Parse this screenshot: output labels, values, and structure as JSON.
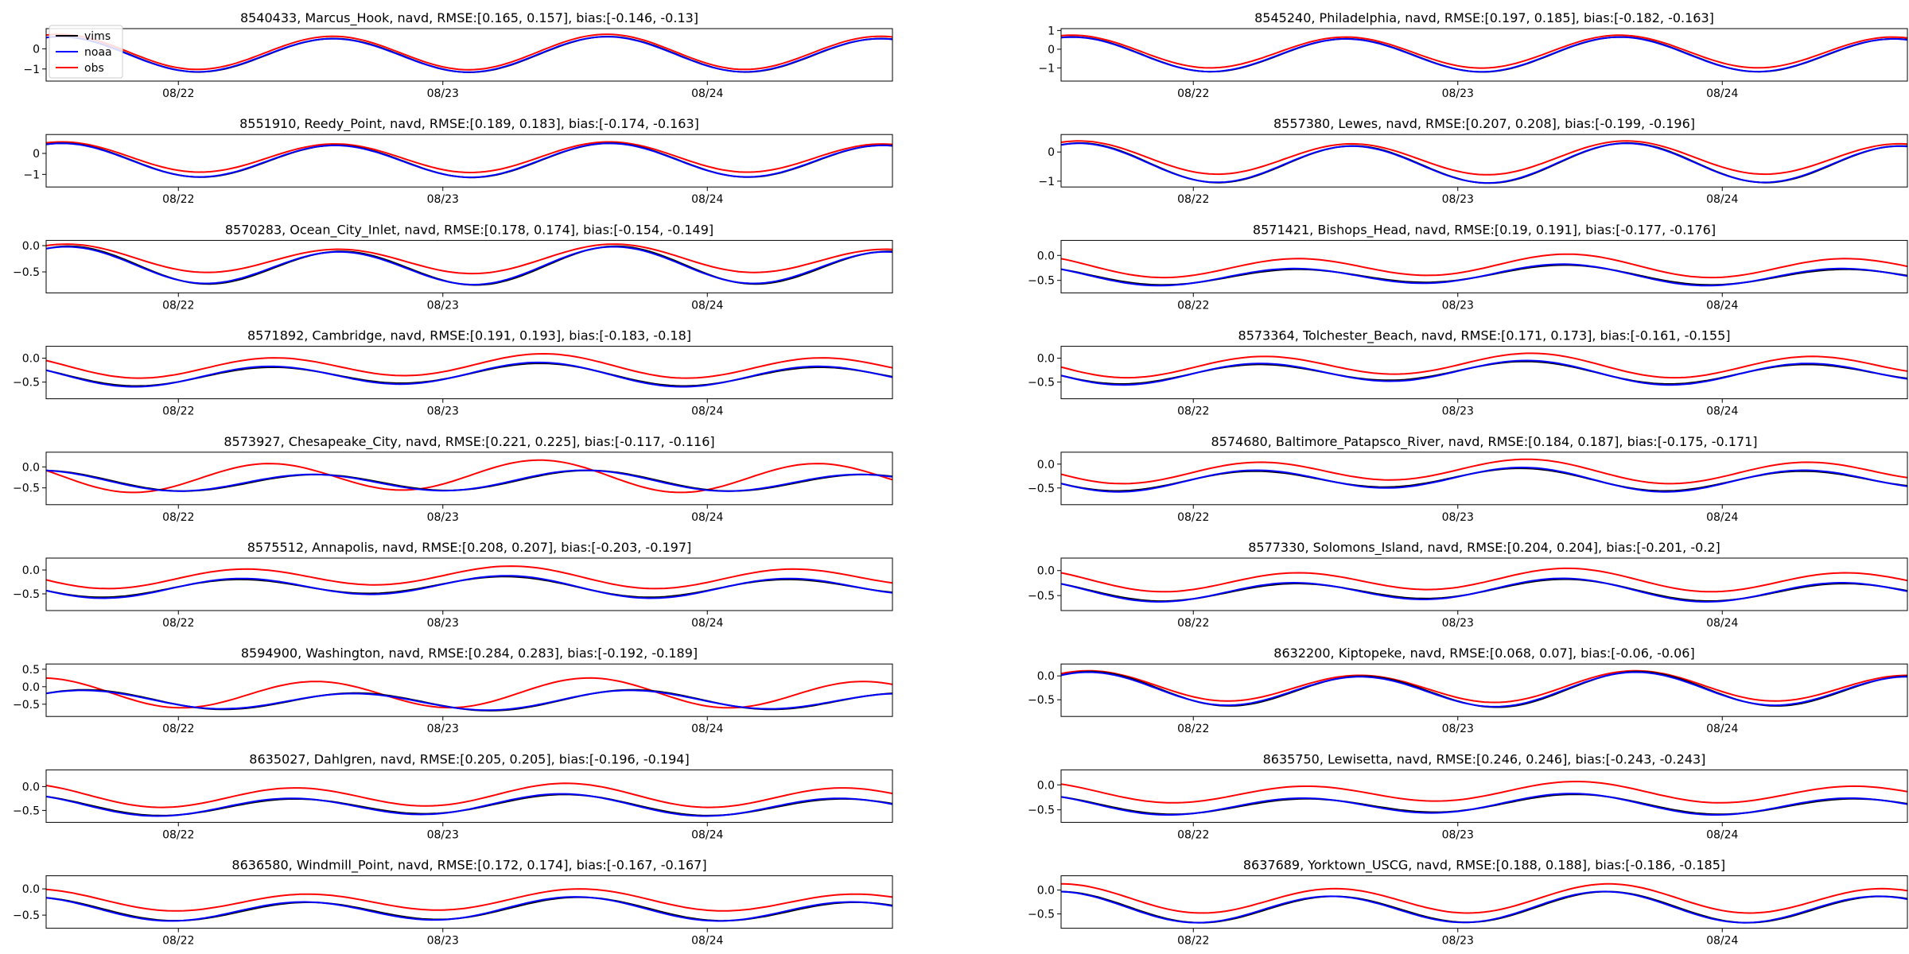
{
  "legend": {
    "location": "upper-left of first panel",
    "entries": [
      {
        "label": "vims",
        "color": "#000000"
      },
      {
        "label": "noaa",
        "color": "#0000ff"
      },
      {
        "label": "obs",
        "color": "#ff0000"
      }
    ]
  },
  "colors": {
    "vims": "#000000",
    "noaa": "#0000ff",
    "obs": "#ff0000",
    "axes": "#000000",
    "text": "#000000"
  },
  "x_ticks": [
    "08/22",
    "08/23",
    "08/24"
  ],
  "chart_data": [
    {
      "type": "line",
      "title": "8540433, Marcus_Hook, navd, RMSE:[0.165, 0.157], bias:[-0.146, -0.13]",
      "ylim": [
        -1.6,
        1.0
      ],
      "yticks": [
        -1,
        0
      ],
      "model": {
        "mean": -0.3,
        "amp": 0.85,
        "phase": -0.3
      },
      "obs": {
        "mean": -0.18,
        "amp": 0.85,
        "phase": -0.3
      }
    },
    {
      "type": "line",
      "title": "8545240, Philadelphia, navd, RMSE:[0.197, 0.185], bias:[-0.182, -0.163]",
      "ylim": [
        -1.7,
        1.1
      ],
      "yticks": [
        -1,
        0,
        1
      ],
      "model": {
        "mean": -0.3,
        "amp": 0.9,
        "phase": -0.25
      },
      "obs": {
        "mean": -0.15,
        "amp": 0.85,
        "phase": -0.25
      }
    },
    {
      "type": "line",
      "title": "8551910, Reedy_Point, navd, RMSE:[0.189, 0.183], bias:[-0.174, -0.163]",
      "ylim": [
        -1.6,
        0.9
      ],
      "yticks": [
        -1,
        0
      ],
      "model": {
        "mean": -0.35,
        "amp": 0.78,
        "phase": -0.35
      },
      "obs": {
        "mean": -0.2,
        "amp": 0.7,
        "phase": -0.35
      }
    },
    {
      "type": "line",
      "title": "8557380, Lewes, navd, RMSE:[0.207, 0.208], bias:[-0.199, -0.196]",
      "ylim": [
        -1.2,
        0.6
      ],
      "yticks": [
        -1,
        0
      ],
      "model": {
        "mean": -0.4,
        "amp": 0.65,
        "phase": -0.4
      },
      "obs": {
        "mean": -0.22,
        "amp": 0.55,
        "phase": -0.4
      }
    },
    {
      "type": "line",
      "title": "8570283, Ocean_City_Inlet, navd, RMSE:[0.178, 0.174], bias:[-0.154, -0.149]",
      "ylim": [
        -0.9,
        0.1
      ],
      "yticks": [
        -0.5,
        0.0
      ],
      "model": {
        "mean": -0.4,
        "amp": 0.33,
        "phase": -0.45
      },
      "obs": {
        "mean": -0.27,
        "amp": 0.25,
        "phase": -0.45
      }
    },
    {
      "type": "line",
      "title": "8571421, Bishops_Head, navd, RMSE:[0.19, 0.191], bias:[-0.177, -0.176]",
      "ylim": [
        -0.75,
        0.3
      ],
      "yticks": [
        -0.5,
        0.0
      ],
      "model": {
        "mean": -0.4,
        "amp": 0.18,
        "phase": 1.0
      },
      "obs": {
        "mean": -0.22,
        "amp": 0.2,
        "phase": 0.9
      }
    },
    {
      "type": "line",
      "title": "8571892, Cambridge, navd, RMSE:[0.191, 0.193], bias:[-0.183, -0.18]",
      "ylim": [
        -0.85,
        0.25
      ],
      "yticks": [
        -0.5,
        0.0
      ],
      "model": {
        "mean": -0.35,
        "amp": 0.22,
        "phase": 1.2
      },
      "obs": {
        "mean": -0.17,
        "amp": 0.22,
        "phase": 1.1
      }
    },
    {
      "type": "line",
      "title": "8573364, Tolchester_Beach, navd, RMSE:[0.171, 0.173], bias:[-0.161, -0.155]",
      "ylim": [
        -0.85,
        0.25
      ],
      "yticks": [
        -0.5,
        0.0
      ],
      "model": {
        "mean": -0.3,
        "amp": 0.22,
        "phase": 1.8
      },
      "obs": {
        "mean": -0.15,
        "amp": 0.22,
        "phase": 1.7
      }
    },
    {
      "type": "line",
      "title": "8573927, Chesapeake_City, navd, RMSE:[0.221, 0.225], bias:[-0.117, -0.116]",
      "ylim": [
        -0.9,
        0.35
      ],
      "yticks": [
        -0.5,
        0.0
      ],
      "model": {
        "mean": -0.35,
        "amp": 0.22,
        "phase": 0.2
      },
      "obs": {
        "mean": -0.23,
        "amp": 0.35,
        "phase": 1.2
      }
    },
    {
      "type": "line",
      "title": "8574680, Baltimore_Patapsco_River, navd, RMSE:[0.184, 0.187], bias:[-0.175, -0.171]",
      "ylim": [
        -0.85,
        0.25
      ],
      "yticks": [
        -0.5,
        0.0
      ],
      "model": {
        "mean": -0.32,
        "amp": 0.22,
        "phase": 1.9
      },
      "obs": {
        "mean": -0.15,
        "amp": 0.22,
        "phase": 1.8
      }
    },
    {
      "type": "line",
      "title": "8575512, Annapolis, navd, RMSE:[0.208, 0.207], bias:[-0.203, -0.197]",
      "ylim": [
        -0.85,
        0.25
      ],
      "yticks": [
        -0.5,
        0.0
      ],
      "model": {
        "mean": -0.35,
        "amp": 0.2,
        "phase": 1.9
      },
      "obs": {
        "mean": -0.15,
        "amp": 0.2,
        "phase": 1.8
      }
    },
    {
      "type": "line",
      "title": "8577330, Solomons_Island, navd, RMSE:[0.204, 0.204], bias:[-0.201, -0.2]",
      "ylim": [
        -0.8,
        0.25
      ],
      "yticks": [
        -0.5,
        0.0
      ],
      "model": {
        "mean": -0.4,
        "amp": 0.2,
        "phase": 1.0
      },
      "obs": {
        "mean": -0.2,
        "amp": 0.2,
        "phase": 0.9
      }
    },
    {
      "type": "line",
      "title": "8594900, Washington, navd, RMSE:[0.284, 0.283], bias:[-0.192, -0.189]",
      "ylim": [
        -0.85,
        0.65
      ],
      "yticks": [
        -0.5,
        0.0,
        0.5
      ],
      "model": {
        "mean": -0.4,
        "amp": 0.25,
        "phase": -0.8
      },
      "obs": {
        "mean": -0.2,
        "amp": 0.4,
        "phase": 0.1
      }
    },
    {
      "type": "line",
      "title": "8632200, Kiptopeke, navd, RMSE:[0.068, 0.07], bias:[-0.06, -0.06]",
      "ylim": [
        -0.85,
        0.25
      ],
      "yticks": [
        -0.5,
        0.0
      ],
      "model": {
        "mean": -0.3,
        "amp": 0.33,
        "phase": -0.6
      },
      "obs": {
        "mean": -0.24,
        "amp": 0.3,
        "phase": -0.6
      }
    },
    {
      "type": "line",
      "title": "8635027, Dahlgren, navd, RMSE:[0.205, 0.205], bias:[-0.196, -0.194]",
      "ylim": [
        -0.75,
        0.35
      ],
      "yticks": [
        -0.5,
        0.0
      ],
      "model": {
        "mean": -0.4,
        "amp": 0.2,
        "phase": 0.7
      },
      "obs": {
        "mean": -0.2,
        "amp": 0.22,
        "phase": 0.6
      }
    },
    {
      "type": "line",
      "title": "8635750, Lewisetta, navd, RMSE:[0.246, 0.246], bias:[-0.243, -0.243]",
      "ylim": [
        -0.75,
        0.3
      ],
      "yticks": [
        -0.5,
        0.0
      ],
      "model": {
        "mean": -0.4,
        "amp": 0.18,
        "phase": 0.8
      },
      "obs": {
        "mean": -0.16,
        "amp": 0.18,
        "phase": 0.7
      }
    },
    {
      "type": "line",
      "title": "8636580, Windmill_Point, navd, RMSE:[0.172, 0.174], bias:[-0.167, -0.167]",
      "ylim": [
        -0.75,
        0.25
      ],
      "yticks": [
        -0.5,
        0.0
      ],
      "model": {
        "mean": -0.4,
        "amp": 0.2,
        "phase": 0.4
      },
      "obs": {
        "mean": -0.23,
        "amp": 0.18,
        "phase": 0.3
      }
    },
    {
      "type": "line",
      "title": "8637689, Yorktown_USCG, navd, RMSE:[0.188, 0.188], bias:[-0.186, -0.185]",
      "ylim": [
        -0.8,
        0.3
      ],
      "yticks": [
        -0.5,
        0.0
      ],
      "model": {
        "mean": -0.38,
        "amp": 0.3,
        "phase": 0.1
      },
      "obs": {
        "mean": -0.2,
        "amp": 0.28,
        "phase": 0.0
      }
    }
  ]
}
